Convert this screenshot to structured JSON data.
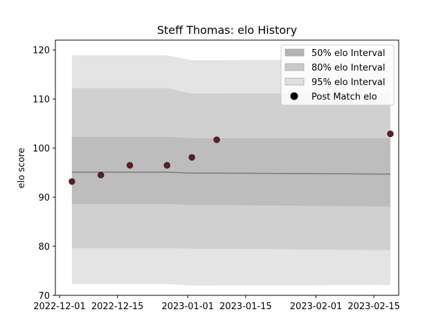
{
  "chart_data": {
    "type": "scatter",
    "title": "Steff Thomas: elo History",
    "xlabel": "",
    "ylabel": "elo score",
    "xlim": [
      "2022-11-30",
      "2023-02-21"
    ],
    "ylim": [
      70,
      122
    ],
    "x_ticks": [
      "2022-12-01",
      "2022-12-15",
      "2023-01-01",
      "2023-01-15",
      "2023-02-01",
      "2023-02-15"
    ],
    "y_ticks": [
      70,
      80,
      90,
      100,
      110,
      120
    ],
    "grid": false,
    "legend_position": "top-right",
    "mean_line": {
      "x": [
        "2022-12-04",
        "2022-12-11",
        "2022-12-18",
        "2022-12-27",
        "2023-01-02",
        "2023-01-08",
        "2023-02-19"
      ],
      "y": [
        95.1,
        95.1,
        95.1,
        95.1,
        94.9,
        94.9,
        94.7
      ]
    },
    "bands": [
      {
        "name": "95% elo Interval",
        "color": "#e4e4e4",
        "x": [
          "2022-12-04",
          "2022-12-11",
          "2022-12-18",
          "2022-12-27",
          "2023-01-02",
          "2023-01-08",
          "2023-02-19"
        ],
        "lower": [
          72.3,
          72.3,
          72.3,
          72.3,
          72.0,
          72.0,
          72.1
        ],
        "upper": [
          118.9,
          118.9,
          118.9,
          118.9,
          117.9,
          117.9,
          118.0
        ]
      },
      {
        "name": "80% elo Interval",
        "color": "#d0d0d0",
        "x": [
          "2022-12-04",
          "2022-12-11",
          "2022-12-18",
          "2022-12-27",
          "2023-01-02",
          "2023-01-08",
          "2023-02-19"
        ],
        "lower": [
          79.6,
          79.6,
          79.6,
          79.6,
          79.5,
          79.5,
          79.2
        ],
        "upper": [
          112.2,
          112.2,
          112.2,
          112.2,
          111.1,
          111.1,
          111.2
        ]
      },
      {
        "name": "50% elo Interval",
        "color": "#bdbdbd",
        "x": [
          "2022-12-04",
          "2022-12-11",
          "2022-12-18",
          "2022-12-27",
          "2023-01-02",
          "2023-01-08",
          "2023-02-19"
        ],
        "lower": [
          88.6,
          88.6,
          88.6,
          88.6,
          88.4,
          88.4,
          88.1
        ],
        "upper": [
          102.3,
          102.3,
          102.3,
          102.3,
          102.0,
          102.0,
          102.0
        ]
      }
    ],
    "series": [
      {
        "name": "Post Match elo",
        "color": "#6b1a1f",
        "x": [
          "2022-12-04",
          "2022-12-11",
          "2022-12-18",
          "2022-12-27",
          "2023-01-02",
          "2023-01-08",
          "2023-02-19"
        ],
        "y": [
          93.2,
          94.5,
          96.5,
          96.5,
          98.1,
          101.7,
          102.9
        ]
      }
    ],
    "legend": [
      {
        "label": "50% elo Interval",
        "kind": "patch",
        "color": "#b4b4b4"
      },
      {
        "label": "80% elo Interval",
        "kind": "patch",
        "color": "#c9c9c9"
      },
      {
        "label": "95% elo Interval",
        "kind": "patch",
        "color": "#e0e0e0"
      },
      {
        "label": "Post Match elo",
        "kind": "marker",
        "color": "#000000"
      }
    ]
  }
}
